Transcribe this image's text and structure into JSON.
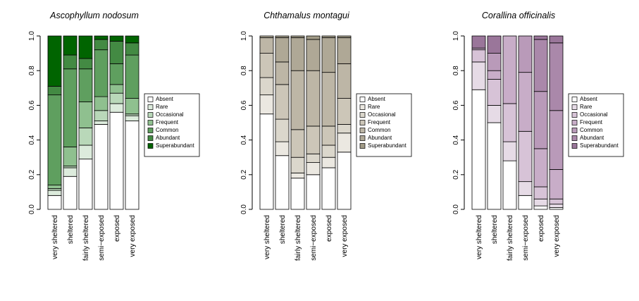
{
  "chart_data": [
    {
      "type": "bar",
      "stacked": true,
      "title": "Ascophyllum nodosum",
      "categories": [
        "very sheltered",
        "sheltered",
        "fairly sheltered",
        "semi−exposed",
        "exposed",
        "very exposed"
      ],
      "series": [
        {
          "name": "Absent",
          "color": "#ffffff",
          "values": [
            0.08,
            0.19,
            0.29,
            0.49,
            0.56,
            0.51
          ]
        },
        {
          "name": "Rare",
          "color": "#dcebdc",
          "values": [
            0.03,
            0.05,
            0.08,
            0.02,
            0.05,
            0.03
          ]
        },
        {
          "name": "Occasional",
          "color": "#b9d8b9",
          "values": [
            0.01,
            0.01,
            0.1,
            0.06,
            0.06,
            0.01
          ]
        },
        {
          "name": "Frequent",
          "color": "#8fc08f",
          "values": [
            0.02,
            0.11,
            0.15,
            0.08,
            0.05,
            0.09
          ]
        },
        {
          "name": "Common",
          "color": "#5f9f5f",
          "values": [
            0.52,
            0.45,
            0.19,
            0.27,
            0.12,
            0.25
          ]
        },
        {
          "name": "Abundant",
          "color": "#438a43",
          "values": [
            0.05,
            0.08,
            0.06,
            0.06,
            0.13,
            0.07
          ]
        },
        {
          "name": "Superabundant",
          "color": "#006400",
          "values": [
            0.29,
            0.11,
            0.13,
            0.02,
            0.03,
            0.04
          ]
        }
      ],
      "ylim": [
        0,
        1
      ],
      "yticks": [
        {
          "value": 0,
          "label": "0.0"
        },
        0.2,
        0.4,
        0.6,
        0.8,
        {
          "value": 1,
          "label": "1.0"
        }
      ]
    },
    {
      "type": "bar",
      "stacked": true,
      "title": "Chthamalus montagui",
      "categories": [
        "very sheltered",
        "sheltered",
        "fairly sheltered",
        "semi−exposed",
        "exposed",
        "very exposed"
      ],
      "series": [
        {
          "name": "Absent",
          "color": "#ffffff",
          "values": [
            0.55,
            0.31,
            0.18,
            0.2,
            0.24,
            0.33
          ]
        },
        {
          "name": "Rare",
          "color": "#ebe8e1",
          "values": [
            0.11,
            0.08,
            0.03,
            0.07,
            0.06,
            0.11
          ]
        },
        {
          "name": "Occasional",
          "color": "#dbd7cc",
          "values": [
            0.1,
            0.13,
            0.09,
            0.05,
            0.07,
            0.05
          ]
        },
        {
          "name": "Frequent",
          "color": "#ccc6b8",
          "values": [
            0.14,
            0.2,
            0.16,
            0.16,
            0.11,
            0.15
          ]
        },
        {
          "name": "Common",
          "color": "#bdb6a6",
          "values": [
            0.09,
            0.13,
            0.34,
            0.32,
            0.31,
            0.2
          ]
        },
        {
          "name": "Abundant",
          "color": "#afa896",
          "values": [
            0.01,
            0.14,
            0.19,
            0.18,
            0.2,
            0.15
          ]
        },
        {
          "name": "Superabundant",
          "color": "#a19b87",
          "values": [
            0,
            0.01,
            0.01,
            0.02,
            0.01,
            0.01
          ]
        }
      ],
      "ylim": [
        0,
        1
      ],
      "yticks": [
        {
          "value": 0,
          "label": "0.0"
        },
        0.2,
        0.4,
        0.6,
        0.8,
        {
          "value": 1,
          "label": "1.0"
        }
      ]
    },
    {
      "type": "bar",
      "stacked": true,
      "title": "Corallina officinalis",
      "categories": [
        "very sheltered",
        "sheltered",
        "fairly sheltered",
        "semi−exposed",
        "exposed",
        "very exposed"
      ],
      "series": [
        {
          "name": "Absent",
          "color": "#ffffff",
          "values": [
            0.69,
            0.5,
            0.28,
            0.08,
            0.02,
            0.01
          ]
        },
        {
          "name": "Rare",
          "color": "#e6dbe6",
          "values": [
            0.16,
            0.1,
            0.11,
            0.08,
            0.04,
            0.02
          ]
        },
        {
          "name": "Occasional",
          "color": "#d7c3d7",
          "values": [
            0.07,
            0.15,
            0.22,
            0.29,
            0.07,
            0.03
          ]
        },
        {
          "name": "Frequent",
          "color": "#c8adc8",
          "values": [
            0.01,
            0.05,
            0.39,
            0.34,
            0.22,
            0.17
          ]
        },
        {
          "name": "Common",
          "color": "#b99ab9",
          "values": [
            0,
            0.1,
            0,
            0.21,
            0.33,
            0.34
          ]
        },
        {
          "name": "Abundant",
          "color": "#aa88aa",
          "values": [
            0,
            0,
            0,
            0,
            0.3,
            0.39
          ]
        },
        {
          "name": "Superabundant",
          "color": "#9a769a",
          "values": [
            0.07,
            0.1,
            0,
            0,
            0.02,
            0.04
          ]
        }
      ],
      "ylim": [
        0,
        1
      ],
      "yticks": [
        {
          "value": 0,
          "label": "0.0"
        },
        0.2,
        0.4,
        0.6,
        0.8,
        {
          "value": 1,
          "label": "1.0"
        }
      ]
    }
  ]
}
